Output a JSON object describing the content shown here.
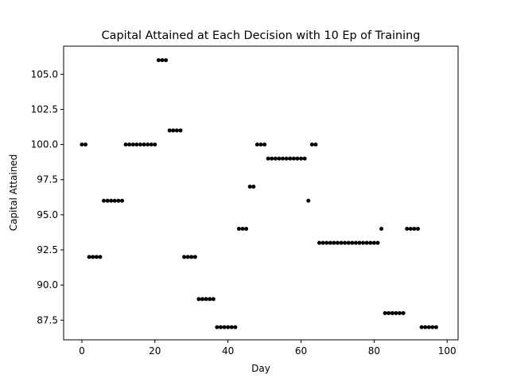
{
  "chart_data": {
    "type": "scatter",
    "title": "Capital Attained at Each Decision with 10 Ep of Training",
    "xlabel": "Day",
    "ylabel": "Capital Attained",
    "xlim": [
      -5,
      103
    ],
    "ylim": [
      86.1,
      107.0
    ],
    "xticks": [
      0,
      20,
      40,
      60,
      80,
      100
    ],
    "xtick_labels": [
      "0",
      "20",
      "40",
      "60",
      "80",
      "100"
    ],
    "yticks": [
      87.5,
      90.0,
      92.5,
      95.0,
      97.5,
      100.0,
      102.5,
      105.0
    ],
    "ytick_labels": [
      "87.5",
      "90.0",
      "92.5",
      "95.0",
      "97.5",
      "100.0",
      "102.5",
      "105.0"
    ],
    "grid": false,
    "marker_color": "#000000",
    "x": [
      0,
      1,
      2,
      3,
      4,
      5,
      6,
      7,
      8,
      9,
      10,
      11,
      12,
      13,
      14,
      15,
      16,
      17,
      18,
      19,
      20,
      21,
      22,
      23,
      24,
      25,
      26,
      27,
      28,
      29,
      30,
      31,
      32,
      33,
      34,
      35,
      36,
      37,
      38,
      39,
      40,
      41,
      42,
      43,
      44,
      45,
      46,
      47,
      48,
      49,
      50,
      51,
      52,
      53,
      54,
      55,
      56,
      57,
      58,
      59,
      60,
      61,
      62,
      63,
      64,
      65,
      66,
      67,
      68,
      69,
      70,
      71,
      72,
      73,
      74,
      75,
      76,
      77,
      78,
      79,
      80,
      81,
      82,
      83,
      84,
      85,
      86,
      87,
      88,
      89,
      90,
      91,
      92,
      93,
      94,
      95,
      96,
      97
    ],
    "y": [
      100,
      100,
      92,
      92,
      92,
      92,
      96,
      96,
      96,
      96,
      96,
      96,
      100,
      100,
      100,
      100,
      100,
      100,
      100,
      100,
      100,
      106,
      106,
      106,
      101,
      101,
      101,
      101,
      92,
      92,
      92,
      92,
      89,
      89,
      89,
      89,
      89,
      87,
      87,
      87,
      87,
      87,
      87,
      94,
      94,
      94,
      97,
      97,
      100,
      100,
      100,
      99,
      99,
      99,
      99,
      99,
      99,
      99,
      99,
      99,
      99,
      99,
      96,
      100,
      100,
      93,
      93,
      93,
      93,
      93,
      93,
      93,
      93,
      93,
      93,
      93,
      93,
      93,
      93,
      93,
      93,
      93,
      94,
      88,
      88,
      88,
      88,
      88,
      88,
      94,
      94,
      94,
      94,
      87,
      87,
      87,
      87,
      87
    ]
  }
}
